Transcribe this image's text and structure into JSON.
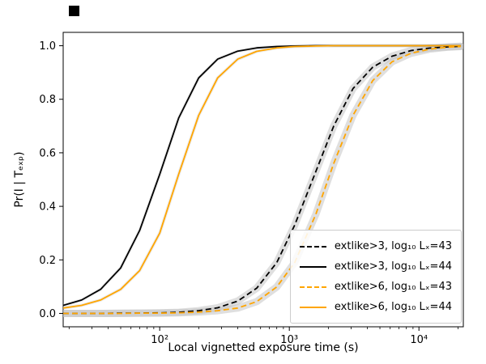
{
  "chart_data": {
    "type": "line",
    "title": "",
    "xscale": "log",
    "xlim": [
      18,
      22000
    ],
    "ylim": [
      -0.05,
      1.05
    ],
    "xlabel": "Local vignetted exposure time (s)",
    "ylabel": "Pr(I | Tₑₓₚ)",
    "grid": false,
    "legend_position": "lower right",
    "band_color": "#c0c0c0",
    "xticks": [
      100,
      1000,
      10000
    ],
    "xtick_labels": [
      "10²",
      "10³",
      "10⁴"
    ],
    "ytick_values": [
      0.0,
      0.2,
      0.4,
      0.6,
      0.8,
      1.0
    ],
    "ytick_labels": [
      "0.0",
      "0.2",
      "0.4",
      "0.6",
      "0.8",
      "1.0"
    ],
    "x": [
      18,
      25,
      35,
      50,
      70,
      100,
      140,
      200,
      280,
      400,
      560,
      800,
      1100,
      1600,
      2200,
      3100,
      4400,
      6200,
      8700,
      12000,
      17000,
      21000
    ],
    "series": [
      {
        "name": "extlike>3, log₁₀ Lₓ=43",
        "color": "#000000",
        "linestyle": "dashed",
        "band": true,
        "band_width": 9,
        "band_opacity": 0.5,
        "y": [
          0,
          0,
          0,
          0.001,
          0.001,
          0.002,
          0.004,
          0.01,
          0.021,
          0.046,
          0.094,
          0.19,
          0.33,
          0.53,
          0.7,
          0.84,
          0.92,
          0.961,
          0.982,
          0.991,
          0.996,
          0.998
        ]
      },
      {
        "name": "extlike>3, log₁₀ Lₓ=44",
        "color": "#000000",
        "linestyle": "solid",
        "band": true,
        "band_width": 4,
        "band_opacity": 0.3,
        "y": [
          0.03,
          0.05,
          0.09,
          0.17,
          0.31,
          0.52,
          0.73,
          0.88,
          0.95,
          0.98,
          0.992,
          0.997,
          0.999,
          1,
          1,
          1,
          1,
          1,
          1,
          1,
          1,
          1
        ]
      },
      {
        "name": "extlike>6, log₁₀ Lₓ=43",
        "color": "#ffa500",
        "linestyle": "dashed",
        "band": true,
        "band_width": 9,
        "band_opacity": 0.5,
        "y": [
          0,
          0,
          0,
          0,
          0.001,
          0.001,
          0.002,
          0.005,
          0.01,
          0.02,
          0.044,
          0.099,
          0.19,
          0.37,
          0.56,
          0.74,
          0.87,
          0.94,
          0.972,
          0.987,
          0.995,
          0.997
        ]
      },
      {
        "name": "extlike>6, log₁₀ Lₓ=44",
        "color": "#ffa500",
        "linestyle": "solid",
        "band": true,
        "band_width": 4,
        "band_opacity": 0.3,
        "y": [
          0.02,
          0.03,
          0.05,
          0.09,
          0.16,
          0.3,
          0.52,
          0.74,
          0.88,
          0.95,
          0.979,
          0.992,
          0.997,
          0.999,
          1,
          1,
          1,
          1,
          1,
          1,
          1,
          1
        ]
      }
    ]
  }
}
